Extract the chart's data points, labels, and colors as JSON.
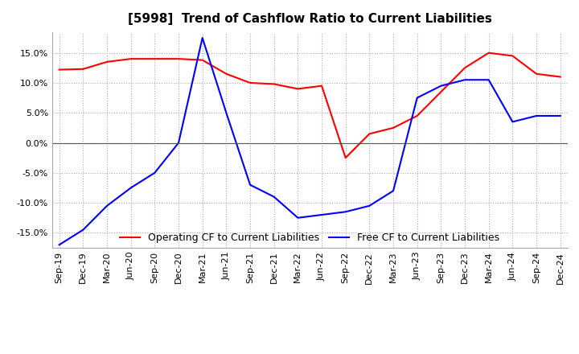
{
  "title": "[5998]  Trend of Cashflow Ratio to Current Liabilities",
  "x_labels": [
    "Sep-19",
    "Dec-19",
    "Mar-20",
    "Jun-20",
    "Sep-20",
    "Dec-20",
    "Mar-21",
    "Jun-21",
    "Sep-21",
    "Dec-21",
    "Mar-22",
    "Jun-22",
    "Sep-22",
    "Dec-22",
    "Mar-23",
    "Jun-23",
    "Sep-23",
    "Dec-23",
    "Mar-24",
    "Jun-24",
    "Sep-24",
    "Dec-24"
  ],
  "operating_cf": [
    12.2,
    12.3,
    13.5,
    14.0,
    14.0,
    14.0,
    13.8,
    11.5,
    10.0,
    9.8,
    9.0,
    9.5,
    -2.5,
    1.5,
    2.5,
    4.5,
    8.5,
    12.5,
    15.0,
    14.5,
    11.5,
    11.0
  ],
  "free_cf": [
    -17.0,
    -14.5,
    -10.5,
    -7.5,
    -5.0,
    0.0,
    17.5,
    5.0,
    -7.0,
    -9.0,
    -12.5,
    -12.0,
    -11.5,
    -10.5,
    -8.0,
    7.5,
    9.5,
    10.5,
    10.5,
    3.5,
    4.5,
    4.5
  ],
  "operating_color": "#ff0000",
  "free_color": "#0000ff",
  "ylim": [
    -17.5,
    18.5
  ],
  "yticks": [
    -15.0,
    -10.0,
    -5.0,
    0.0,
    5.0,
    10.0,
    15.0
  ],
  "grid_color": "#aaaaaa",
  "background_color": "#ffffff",
  "legend_operating": "Operating CF to Current Liabilities",
  "legend_free": "Free CF to Current Liabilities",
  "title_fontsize": 11,
  "tick_fontsize": 8,
  "legend_fontsize": 9
}
